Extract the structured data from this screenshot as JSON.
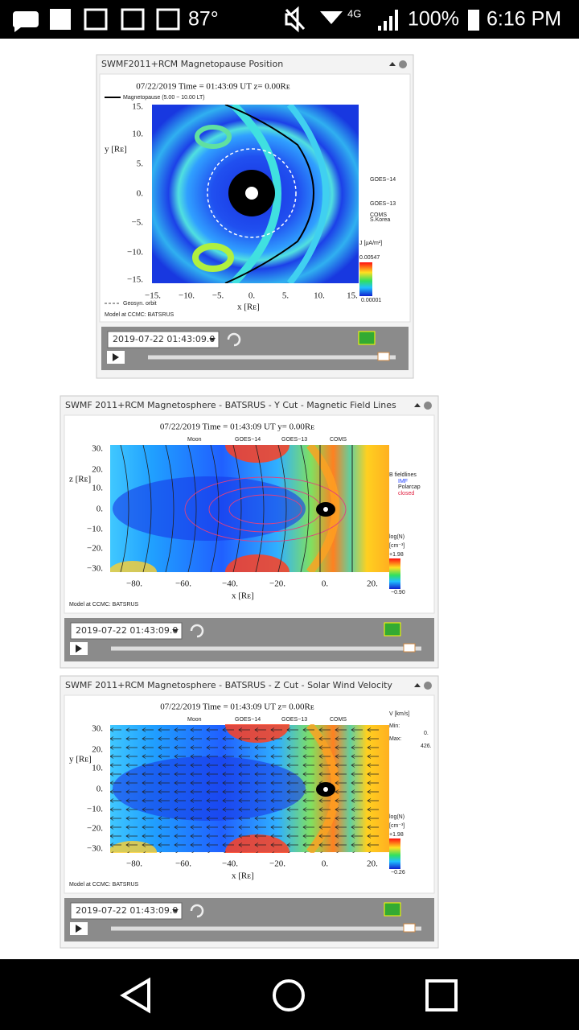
{
  "status_bar": {
    "temperature": "87°",
    "network": "4G",
    "battery": "100%",
    "time": "6:16 PM"
  },
  "panels": [
    {
      "title": "SWMF2011+RCM Magnetopause Position",
      "plot_title": "07/22/2019 Time = 01:43:09 UT z= 0.00Rᴇ",
      "legend": "Magnetopause (5.00 − 10.00 LT)",
      "y_label": "y [Rᴇ]",
      "x_label": "x [Rᴇ]",
      "y_ticks": [
        "15.",
        "10.",
        "5.",
        "0.",
        "−5.",
        "−10.",
        "−15."
      ],
      "x_ticks": [
        "−15.",
        "−10.",
        "−5.",
        "0.",
        "5.",
        "10.",
        "15."
      ],
      "satellites": [
        "GOES−14",
        "GOES−13",
        "COMS",
        "S.Korea"
      ],
      "colorbar": {
        "label": "J [μA/m²]",
        "max": "0.00547",
        "min": "0.00001"
      },
      "orbit_note": "Geosyn. orbit",
      "footer": "Model at CCMC: BATSRUS",
      "timestamp": "2019-07-22 01:43:09.0"
    },
    {
      "title": "SWMF 2011+RCM Magnetosphere - BATSRUS - Y Cut - Magnetic Field Lines",
      "plot_title": "07/22/2019 Time = 01:43:09 UT y= 0.00Rᴇ",
      "objects": [
        "Moon",
        "GOES−14",
        "GOES−13",
        "COMS"
      ],
      "y_label": "z [Rᴇ]",
      "x_label": "x [Rᴇ]",
      "y_ticks": [
        "30.",
        "20.",
        "10.",
        "0.",
        "−10.",
        "−20.",
        "−30."
      ],
      "x_ticks": [
        "−80.",
        "−60.",
        "−40.",
        "−20.",
        "0.",
        "20."
      ],
      "field_lines": [
        "B fieldlines",
        "IMF",
        "Polarcap",
        "closed"
      ],
      "colorbar": {
        "label": "log(N)",
        "unit": "[cm⁻³]",
        "max": "+1.98",
        "min": "−0.90"
      },
      "footer": "Model at CCMC: BATSRUS",
      "timestamp": "2019-07-22 01:43:09.0"
    },
    {
      "title": "SWMF 2011+RCM Magnetosphere - BATSRUS - Z Cut - Solar Wind Velocity",
      "plot_title": "07/22/2019 Time = 01:43:09 UT z= 0.00Rᴇ",
      "objects": [
        "Moon",
        "GOES−14",
        "GOES−13",
        "COMS"
      ],
      "y_label": "y [Rᴇ]",
      "x_label": "x [Rᴇ]",
      "y_ticks": [
        "30.",
        "20.",
        "10.",
        "0.",
        "−10.",
        "−20.",
        "−30."
      ],
      "x_ticks": [
        "−80.",
        "−60.",
        "−40.",
        "−20.",
        "0.",
        "20."
      ],
      "velocity": {
        "label": "V [km/s]",
        "min_label": "Min:",
        "min": "0.",
        "max_label": "Max:",
        "max": "426."
      },
      "colorbar": {
        "label": "log(N)",
        "unit": "[cm⁻³]",
        "max": "+1.98",
        "min": "−0.26"
      },
      "footer": "Model at CCMC: BATSRUS",
      "timestamp": "2019-07-22 01:43:09.0"
    }
  ]
}
